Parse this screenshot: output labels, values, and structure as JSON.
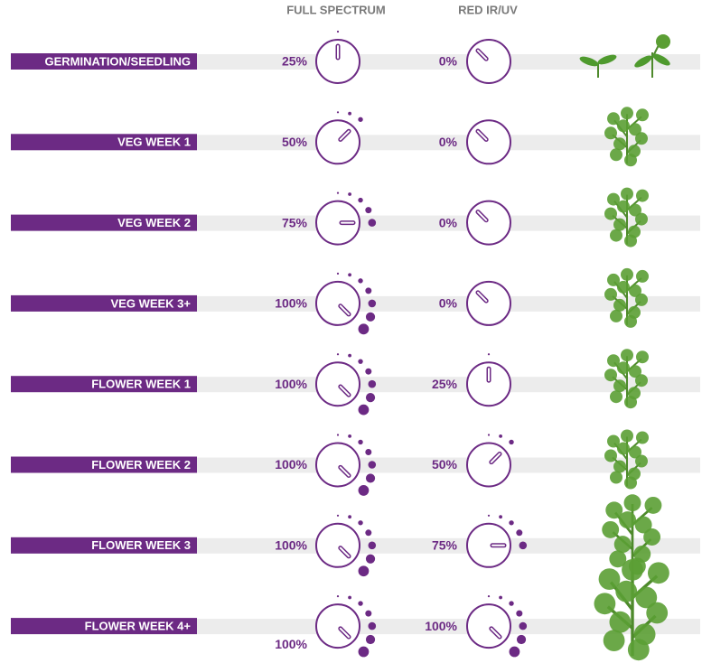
{
  "header": {
    "full_spectrum": "FULL SPECTRUM",
    "red_ir_uv": "RED IR/UV"
  },
  "rows": [
    {
      "stage": "GERMINATION/SEEDLING",
      "full_spectrum": {
        "value": 25,
        "label": "25%"
      },
      "red_ir_uv": {
        "value": 0,
        "label": "0%"
      }
    },
    {
      "stage": "VEG WEEK 1",
      "full_spectrum": {
        "value": 50,
        "label": "50%"
      },
      "red_ir_uv": {
        "value": 0,
        "label": "0%"
      }
    },
    {
      "stage": "VEG WEEK 2",
      "full_spectrum": {
        "value": 75,
        "label": "75%"
      },
      "red_ir_uv": {
        "value": 0,
        "label": "0%"
      }
    },
    {
      "stage": "VEG WEEK 3+",
      "full_spectrum": {
        "value": 100,
        "label": "100%"
      },
      "red_ir_uv": {
        "value": 0,
        "label": "0%"
      }
    },
    {
      "stage": "FLOWER WEEK 1",
      "full_spectrum": {
        "value": 100,
        "label": "100%"
      },
      "red_ir_uv": {
        "value": 25,
        "label": "25%"
      }
    },
    {
      "stage": "FLOWER WEEK 2",
      "full_spectrum": {
        "value": 100,
        "label": "100%"
      },
      "red_ir_uv": {
        "value": 50,
        "label": "50%"
      }
    },
    {
      "stage": "FLOWER WEEK 3",
      "full_spectrum": {
        "value": 100,
        "label": "100%"
      },
      "red_ir_uv": {
        "value": 75,
        "label": "75%"
      }
    },
    {
      "stage": "FLOWER WEEK 4+",
      "full_spectrum": {
        "value": 100,
        "label": "100%"
      },
      "red_ir_uv": {
        "value": 100,
        "label": "100%"
      }
    }
  ]
}
